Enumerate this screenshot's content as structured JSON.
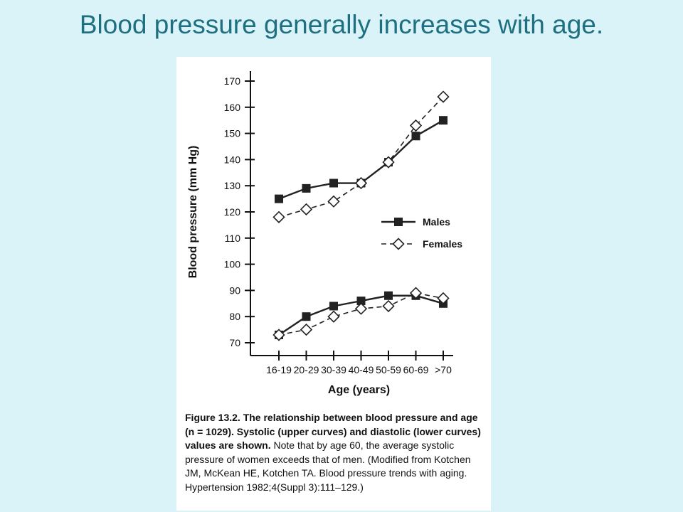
{
  "slide": {
    "title": "Blood pressure generally increases with age."
  },
  "figure": {
    "caption_label": "Figure 13.2.",
    "caption_bold": "The relationship between blood pressure and age (n = 1029). Systolic (upper curves) and diastolic (lower curves) values are shown.",
    "caption_note": "Note that by age 60, the average systolic pressure of women exceeds that of men. (Modified from Kotchen JM, McKean HE, Kotchen TA. Blood pressure trends with aging. Hypertension 1982;4(Suppl 3):111–129.)"
  },
  "chart_data": {
    "type": "line",
    "title": "",
    "xlabel": "Age (years)",
    "ylabel": "Blood pressure (mm Hg)",
    "categories": [
      "16-19",
      "20-29",
      "30-39",
      "40-49",
      "50-59",
      "60-69",
      ">70"
    ],
    "yticks": [
      70,
      80,
      90,
      100,
      110,
      120,
      130,
      140,
      150,
      160,
      170
    ],
    "ylim": [
      70,
      170
    ],
    "grid": false,
    "legend_position": "right",
    "series": [
      {
        "name": "Males",
        "group": "systolic",
        "marker": "filled-square",
        "line": "solid",
        "values": [
          125,
          129,
          131,
          131,
          139,
          149,
          155
        ]
      },
      {
        "name": "Females",
        "group": "systolic",
        "marker": "open-diamond",
        "line": "dashed",
        "values": [
          118,
          121,
          124,
          131,
          139,
          153,
          164
        ]
      },
      {
        "name": "Males",
        "group": "diastolic",
        "marker": "filled-square",
        "line": "solid",
        "values": [
          73,
          80,
          84,
          86,
          88,
          88,
          85
        ]
      },
      {
        "name": "Females",
        "group": "diastolic",
        "marker": "open-diamond",
        "line": "dashed",
        "values": [
          73,
          75,
          80,
          83,
          84,
          89,
          87
        ]
      }
    ],
    "legend": [
      {
        "label": "Males",
        "marker": "filled-square",
        "line": "solid"
      },
      {
        "label": "Females",
        "marker": "open-diamond",
        "line": "dashed"
      }
    ]
  }
}
